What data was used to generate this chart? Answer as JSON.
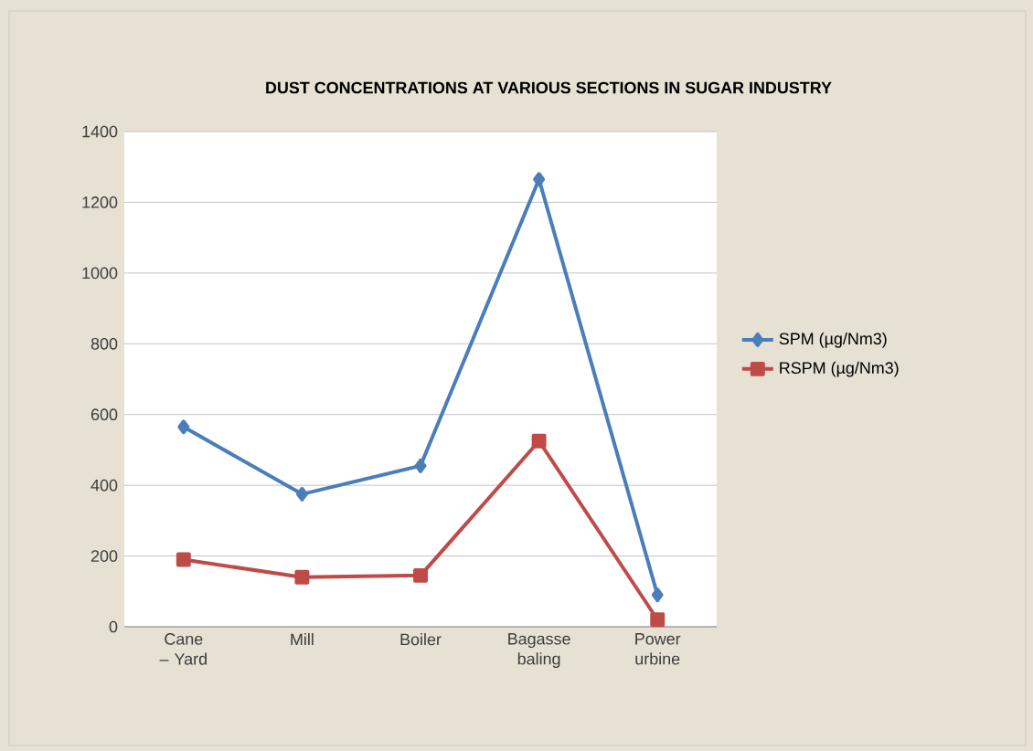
{
  "chart_data": {
    "type": "line",
    "title": "DUST CONCENTRATIONS AT VARIOUS SECTIONS IN SUGAR INDUSTRY",
    "categories": [
      "Cane – Yard",
      "Mill",
      "Boiler",
      "Bagasse baling",
      "Power urbine"
    ],
    "series": [
      {
        "name": "SPM (µg/Nm3)",
        "color": "#4a7ebb",
        "marker": "diamond",
        "values": [
          565,
          375,
          455,
          1265,
          90
        ]
      },
      {
        "name": "RSPM (µg/Nm3)",
        "color": "#be4b48",
        "marker": "square",
        "values": [
          190,
          140,
          145,
          525,
          20
        ]
      }
    ],
    "ylim": [
      0,
      1400
    ],
    "yticks": [
      0,
      200,
      400,
      600,
      800,
      1000,
      1200,
      1400
    ],
    "grid": "y",
    "legend": "right"
  }
}
